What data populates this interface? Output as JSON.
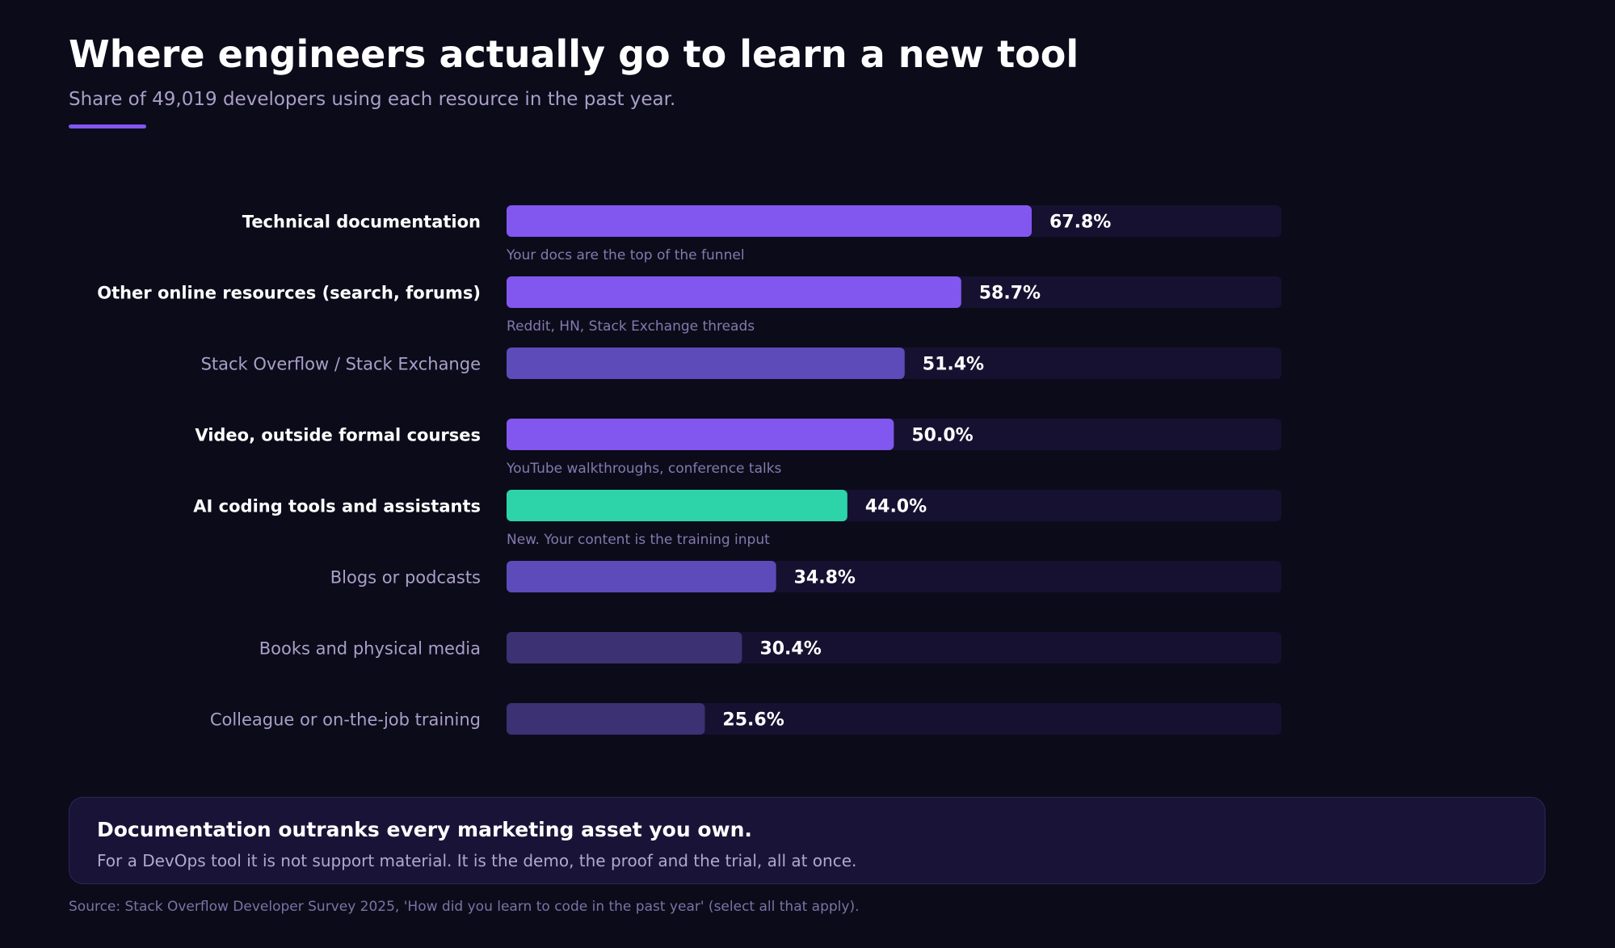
{
  "header": {
    "title": "Where engineers actually go to learn a new tool",
    "subtitle": "Share of 49,019 developers using each resource in the past year."
  },
  "colors": {
    "background": "#0c0b1a",
    "accent": "#8257f0",
    "track": "#171131",
    "highlight": "#2dd4aa",
    "secondary": "#5e4bba",
    "muted": "#3c3173",
    "label_strong": "#ffffff",
    "label_muted": "#a99fc9",
    "note": "#8479ad"
  },
  "chart_data": {
    "type": "bar",
    "orientation": "horizontal",
    "xlim": [
      0,
      100
    ],
    "unit": "%",
    "categories": [
      "Technical documentation",
      "Other online resources (search, forums)",
      "Stack Overflow / Stack Exchange",
      "Video, outside formal courses",
      "AI coding tools and assistants",
      "Blogs or podcasts",
      "Books and physical media",
      "Colleague or on-the-job training"
    ],
    "values": [
      67.8,
      58.7,
      51.4,
      50.0,
      44.0,
      34.8,
      30.4,
      25.6
    ],
    "value_labels": [
      "67.8%",
      "58.7%",
      "51.4%",
      "50.0%",
      "44.0%",
      "34.8%",
      "30.4%",
      "25.6%"
    ],
    "annotations": [
      "Your docs are the top of the funnel",
      "Reddit, HN, Stack Exchange threads",
      "",
      "YouTube walkthroughs, conference talks",
      "New. Your content is the training input",
      "",
      "",
      ""
    ],
    "emphasis": [
      "strong",
      "strong",
      "muted",
      "strong",
      "strong",
      "muted",
      "muted",
      "muted"
    ],
    "bar_colors": [
      "#8257f0",
      "#8257f0",
      "#5e4bba",
      "#8257f0",
      "#2dd4aa",
      "#5e4bba",
      "#3c3173",
      "#3c3173"
    ],
    "grid": false,
    "legend": "none"
  },
  "callout": {
    "heading": "Documentation outranks every marketing asset you own.",
    "body": "For a DevOps tool it is not support material. It is the demo, the proof and the trial, all at once."
  },
  "source": "Source: Stack Overflow Developer Survey 2025, 'How did you learn to code in the past year' (select all that apply)."
}
